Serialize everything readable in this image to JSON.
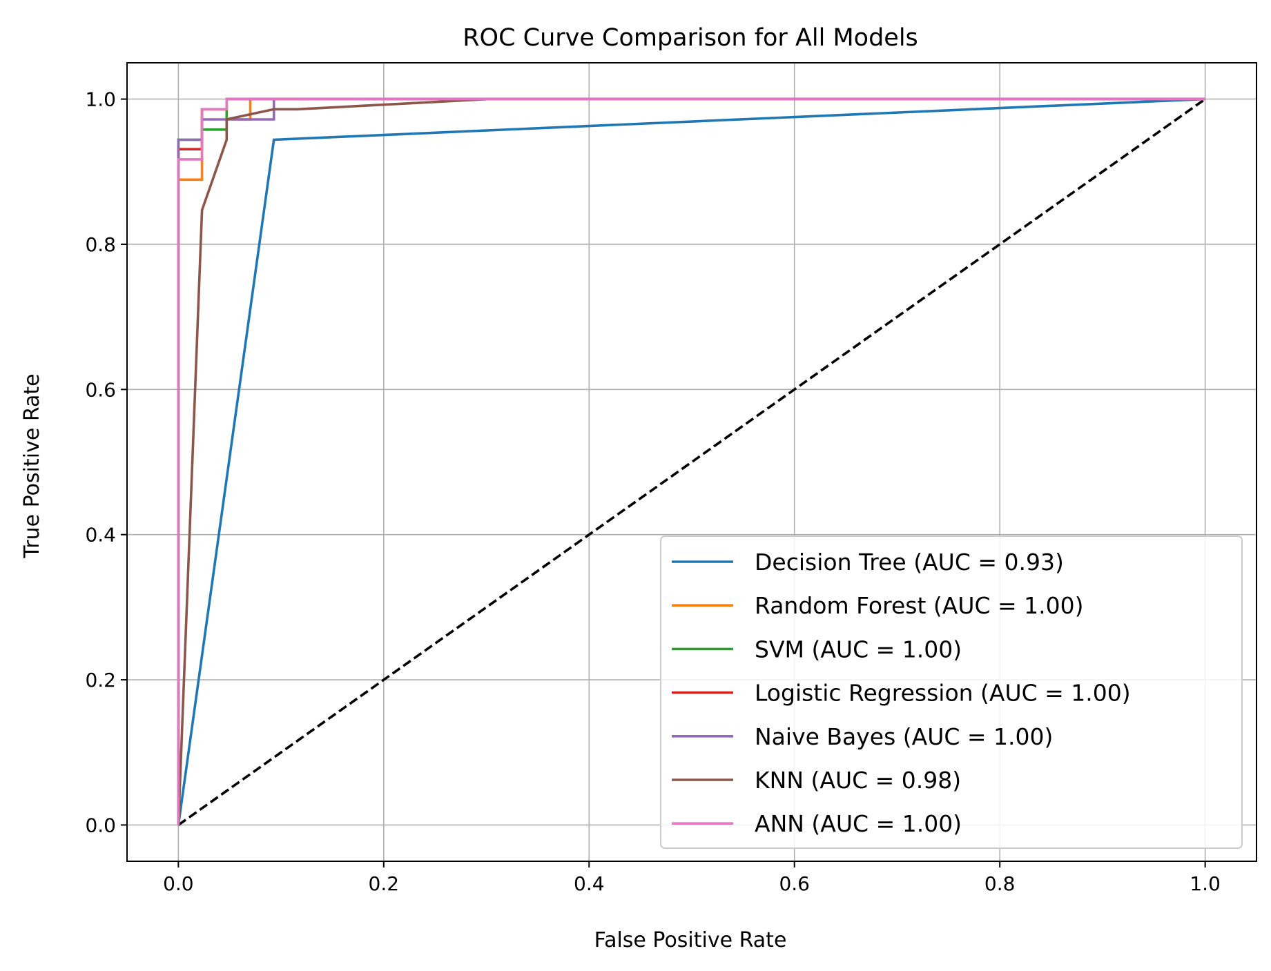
{
  "chart_data": {
    "type": "line",
    "title": "ROC Curve Comparison for All Models",
    "xlabel": "False Positive Rate",
    "ylabel": "True Positive Rate",
    "xlim": [
      -0.05,
      1.05
    ],
    "ylim": [
      -0.05,
      1.05
    ],
    "x_ticks": [
      {
        "value": 0.0,
        "label": "0.0"
      },
      {
        "value": 0.2,
        "label": "0.2"
      },
      {
        "value": 0.4,
        "label": "0.4"
      },
      {
        "value": 0.6,
        "label": "0.6"
      },
      {
        "value": 0.8,
        "label": "0.8"
      },
      {
        "value": 1.0,
        "label": "1.0"
      }
    ],
    "y_ticks": [
      {
        "value": 0.0,
        "label": "0.0"
      },
      {
        "value": 0.2,
        "label": "0.2"
      },
      {
        "value": 0.4,
        "label": "0.4"
      },
      {
        "value": 0.6,
        "label": "0.6"
      },
      {
        "value": 0.8,
        "label": "0.8"
      },
      {
        "value": 1.0,
        "label": "1.0"
      }
    ],
    "grid": true,
    "legend_position": "lower-right",
    "series": [
      {
        "name": "Decision Tree (AUC = 0.93)",
        "color": "#1f77b4",
        "points": [
          [
            0.0,
            0.0
          ],
          [
            0.093,
            0.944
          ],
          [
            1.0,
            1.0
          ]
        ]
      },
      {
        "name": "Random Forest (AUC = 1.00)",
        "color": "#ff7f0e",
        "points": [
          [
            0.0,
            0.0
          ],
          [
            0.0,
            0.889
          ],
          [
            0.023,
            0.889
          ],
          [
            0.023,
            0.986
          ],
          [
            0.047,
            0.986
          ],
          [
            0.047,
            0.972
          ],
          [
            0.07,
            0.972
          ],
          [
            0.07,
            1.0
          ],
          [
            1.0,
            1.0
          ]
        ]
      },
      {
        "name": "SVM (AUC = 1.00)",
        "color": "#2ca02c",
        "points": [
          [
            0.0,
            0.0
          ],
          [
            0.0,
            0.944
          ],
          [
            0.023,
            0.944
          ],
          [
            0.023,
            0.958
          ],
          [
            0.047,
            0.958
          ],
          [
            0.047,
            1.0
          ],
          [
            1.0,
            1.0
          ]
        ]
      },
      {
        "name": "Logistic Regression (AUC = 1.00)",
        "color": "#d62728",
        "points": [
          [
            0.0,
            0.0
          ],
          [
            0.0,
            0.931
          ],
          [
            0.023,
            0.931
          ],
          [
            0.023,
            0.986
          ],
          [
            0.047,
            0.986
          ],
          [
            0.047,
            1.0
          ],
          [
            1.0,
            1.0
          ]
        ]
      },
      {
        "name": "Naive Bayes (AUC = 1.00)",
        "color": "#9467bd",
        "points": [
          [
            0.0,
            0.0
          ],
          [
            0.0,
            0.944
          ],
          [
            0.023,
            0.944
          ],
          [
            0.023,
            0.972
          ],
          [
            0.093,
            0.972
          ],
          [
            0.093,
            1.0
          ],
          [
            1.0,
            1.0
          ]
        ]
      },
      {
        "name": "KNN (AUC = 0.98)",
        "color": "#8c564b",
        "points": [
          [
            0.0,
            0.0
          ],
          [
            0.023,
            0.847
          ],
          [
            0.047,
            0.944
          ],
          [
            0.047,
            0.972
          ],
          [
            0.093,
            0.986
          ],
          [
            0.116,
            0.986
          ],
          [
            0.302,
            1.0
          ],
          [
            1.0,
            1.0
          ]
        ]
      },
      {
        "name": "ANN (AUC = 1.00)",
        "color": "#e377c2",
        "points": [
          [
            0.0,
            0.0
          ],
          [
            0.0,
            0.917
          ],
          [
            0.023,
            0.917
          ],
          [
            0.023,
            0.986
          ],
          [
            0.047,
            0.986
          ],
          [
            0.047,
            1.0
          ],
          [
            1.0,
            1.0
          ]
        ]
      }
    ],
    "reference_line": {
      "color": "#000000",
      "style": "dashed",
      "points": [
        [
          0.0,
          0.0
        ],
        [
          1.0,
          1.0
        ]
      ]
    }
  }
}
